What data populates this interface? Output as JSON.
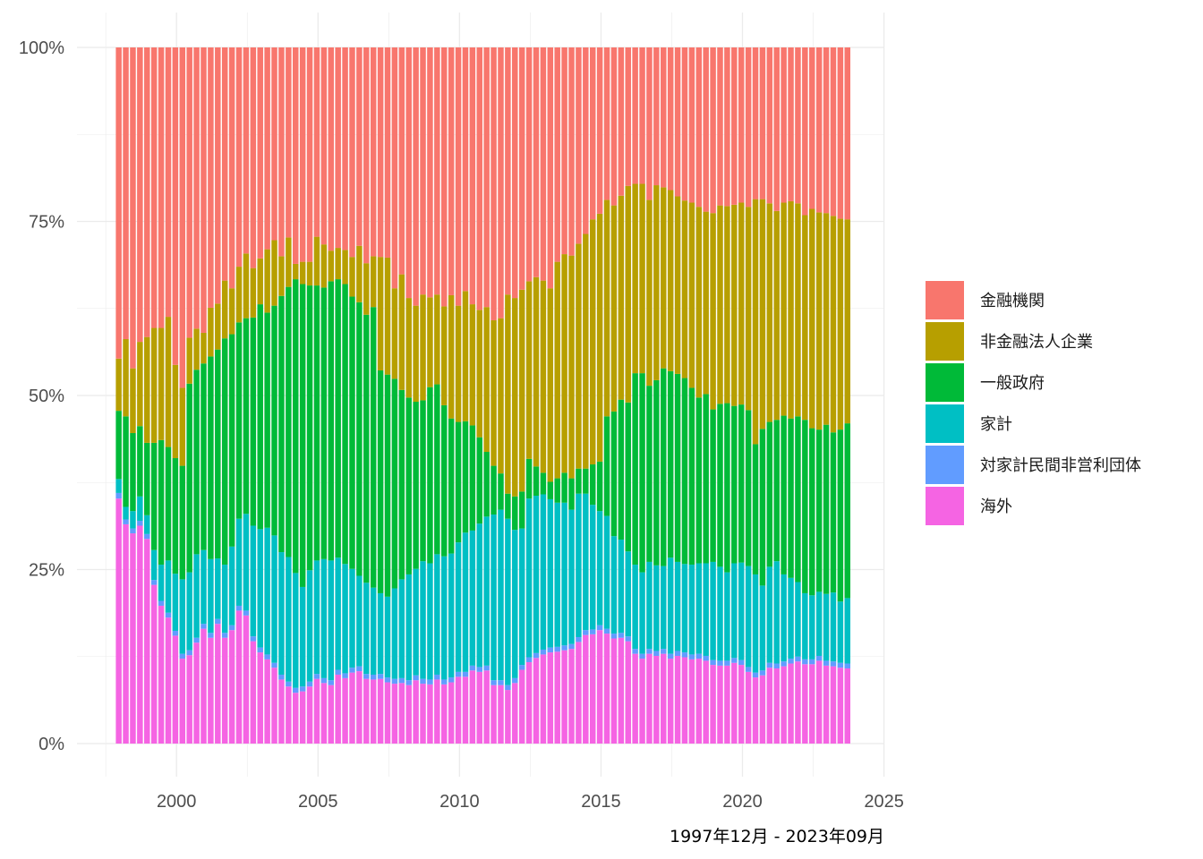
{
  "chart_data": {
    "type": "bar",
    "stacked": true,
    "percent": true,
    "grid": true,
    "legend_position": "right",
    "caption": "1997年12月 - 2023年09月",
    "x_ticks": [
      "2000",
      "2005",
      "2010",
      "2015",
      "2020",
      "2025"
    ],
    "xlim": [
      1997.5,
      2025
    ],
    "y_ticks": [
      "0%",
      "25%",
      "50%",
      "75%",
      "100%"
    ],
    "ylim": [
      0,
      1
    ],
    "period": {
      "start": "1997-12",
      "end": "2023-09",
      "frequency": "quarterly"
    },
    "layers_bottom_to_top": [
      "海外",
      "対家計民間非営利団体",
      "家計",
      "一般政府",
      "非金融法人企業",
      "金融機関"
    ],
    "legend": [
      {
        "name": "金融機関",
        "color": "#F8766D"
      },
      {
        "name": "非金融法人企業",
        "color": "#B79F00"
      },
      {
        "name": "一般政府",
        "color": "#00BA38"
      },
      {
        "name": "家計",
        "color": "#00BFC4"
      },
      {
        "name": "対家計民間非営利団体",
        "color": "#619CFF"
      },
      {
        "name": "海外",
        "color": "#F564E3"
      }
    ],
    "series_cumulative_top": {
      "海外": [
        0.352,
        0.315,
        0.302,
        0.313,
        0.294,
        0.228,
        0.198,
        0.181,
        0.155,
        0.122,
        0.127,
        0.145,
        0.165,
        0.152,
        0.172,
        0.152,
        0.163,
        0.191,
        0.184,
        0.147,
        0.131,
        0.121,
        0.109,
        0.092,
        0.082,
        0.073,
        0.075,
        0.082,
        0.093,
        0.087,
        0.084,
        0.099,
        0.094,
        0.102,
        0.104,
        0.093,
        0.092,
        0.093,
        0.088,
        0.086,
        0.087,
        0.084,
        0.091,
        0.086,
        0.085,
        0.092,
        0.085,
        0.088,
        0.096,
        0.096,
        0.105,
        0.103,
        0.105,
        0.084,
        0.084,
        0.077,
        0.087,
        0.106,
        0.117,
        0.123,
        0.128,
        0.131,
        0.132,
        0.134,
        0.136,
        0.146,
        0.156,
        0.157,
        0.163,
        0.158,
        0.151,
        0.152,
        0.147,
        0.129,
        0.122,
        0.129,
        0.126,
        0.129,
        0.122,
        0.126,
        0.124,
        0.121,
        0.122,
        0.119,
        0.113,
        0.112,
        0.112,
        0.116,
        0.113,
        0.103,
        0.095,
        0.098,
        0.109,
        0.108,
        0.111,
        0.115,
        0.118,
        0.114,
        0.114,
        0.119,
        0.112,
        0.111,
        0.109,
        0.108
      ],
      "対家計民間非営利団体": [
        0.36,
        0.322,
        0.309,
        0.32,
        0.301,
        0.235,
        0.205,
        0.188,
        0.162,
        0.129,
        0.134,
        0.152,
        0.172,
        0.159,
        0.179,
        0.159,
        0.17,
        0.198,
        0.191,
        0.154,
        0.138,
        0.128,
        0.116,
        0.099,
        0.089,
        0.08,
        0.082,
        0.089,
        0.1,
        0.094,
        0.091,
        0.106,
        0.101,
        0.109,
        0.111,
        0.1,
        0.099,
        0.1,
        0.095,
        0.093,
        0.094,
        0.091,
        0.098,
        0.093,
        0.092,
        0.099,
        0.092,
        0.095,
        0.103,
        0.103,
        0.112,
        0.11,
        0.112,
        0.091,
        0.091,
        0.084,
        0.094,
        0.113,
        0.124,
        0.13,
        0.135,
        0.138,
        0.139,
        0.141,
        0.143,
        0.153,
        0.163,
        0.164,
        0.17,
        0.165,
        0.158,
        0.159,
        0.154,
        0.136,
        0.129,
        0.136,
        0.133,
        0.136,
        0.129,
        0.133,
        0.131,
        0.128,
        0.129,
        0.126,
        0.12,
        0.119,
        0.119,
        0.123,
        0.12,
        0.11,
        0.102,
        0.105,
        0.116,
        0.115,
        0.118,
        0.122,
        0.125,
        0.121,
        0.121,
        0.126,
        0.119,
        0.118,
        0.116,
        0.115
      ],
      "家計": [
        0.38,
        0.34,
        0.334,
        0.355,
        0.328,
        0.278,
        0.257,
        0.263,
        0.244,
        0.236,
        0.246,
        0.272,
        0.278,
        0.265,
        0.266,
        0.257,
        0.283,
        0.323,
        0.33,
        0.313,
        0.308,
        0.31,
        0.299,
        0.275,
        0.268,
        0.245,
        0.225,
        0.249,
        0.263,
        0.265,
        0.263,
        0.267,
        0.258,
        0.251,
        0.241,
        0.231,
        0.224,
        0.216,
        0.211,
        0.223,
        0.236,
        0.243,
        0.251,
        0.262,
        0.259,
        0.272,
        0.269,
        0.273,
        0.289,
        0.303,
        0.306,
        0.316,
        0.326,
        0.329,
        0.336,
        0.323,
        0.307,
        0.309,
        0.352,
        0.356,
        0.358,
        0.351,
        0.346,
        0.346,
        0.336,
        0.359,
        0.359,
        0.343,
        0.334,
        0.327,
        0.298,
        0.293,
        0.276,
        0.257,
        0.246,
        0.261,
        0.256,
        0.255,
        0.267,
        0.261,
        0.258,
        0.257,
        0.259,
        0.259,
        0.261,
        0.254,
        0.246,
        0.259,
        0.26,
        0.255,
        0.243,
        0.227,
        0.254,
        0.262,
        0.243,
        0.238,
        0.232,
        0.216,
        0.213,
        0.218,
        0.215,
        0.217,
        0.204,
        0.209
      ],
      "一般政府": [
        0.478,
        0.47,
        0.446,
        0.456,
        0.432,
        0.432,
        0.436,
        0.426,
        0.41,
        0.399,
        0.517,
        0.537,
        0.546,
        0.556,
        0.566,
        0.582,
        0.588,
        0.605,
        0.611,
        0.612,
        0.631,
        0.619,
        0.629,
        0.643,
        0.656,
        0.667,
        0.66,
        0.658,
        0.658,
        0.655,
        0.664,
        0.667,
        0.66,
        0.642,
        0.634,
        0.616,
        0.627,
        0.536,
        0.53,
        0.524,
        0.508,
        0.497,
        0.491,
        0.493,
        0.512,
        0.516,
        0.486,
        0.467,
        0.462,
        0.463,
        0.457,
        0.44,
        0.419,
        0.399,
        0.388,
        0.359,
        0.355,
        0.362,
        0.409,
        0.398,
        0.389,
        0.376,
        0.381,
        0.389,
        0.381,
        0.395,
        0.395,
        0.401,
        0.405,
        0.47,
        0.477,
        0.494,
        0.49,
        0.532,
        0.532,
        0.514,
        0.522,
        0.539,
        0.535,
        0.531,
        0.525,
        0.511,
        0.497,
        0.502,
        0.48,
        0.488,
        0.489,
        0.485,
        0.487,
        0.479,
        0.43,
        0.452,
        0.462,
        0.465,
        0.471,
        0.467,
        0.47,
        0.465,
        0.453,
        0.451,
        0.458,
        0.447,
        0.451,
        0.46
      ],
      "非金融法人企業": [
        0.553,
        0.581,
        0.539,
        0.577,
        0.584,
        0.597,
        0.597,
        0.613,
        0.544,
        0.511,
        0.583,
        0.596,
        0.59,
        0.626,
        0.632,
        0.665,
        0.654,
        0.685,
        0.704,
        0.683,
        0.697,
        0.71,
        0.723,
        0.7,
        0.727,
        0.689,
        0.692,
        0.692,
        0.728,
        0.717,
        0.708,
        0.712,
        0.709,
        0.699,
        0.715,
        0.69,
        0.7,
        0.699,
        0.698,
        0.654,
        0.674,
        0.64,
        0.629,
        0.645,
        0.641,
        0.645,
        0.628,
        0.644,
        0.629,
        0.65,
        0.631,
        0.623,
        0.627,
        0.608,
        0.611,
        0.645,
        0.64,
        0.652,
        0.664,
        0.67,
        0.665,
        0.654,
        0.692,
        0.703,
        0.701,
        0.718,
        0.732,
        0.753,
        0.761,
        0.781,
        0.773,
        0.787,
        0.801,
        0.804,
        0.804,
        0.781,
        0.802,
        0.799,
        0.795,
        0.786,
        0.78,
        0.777,
        0.771,
        0.764,
        0.762,
        0.773,
        0.772,
        0.774,
        0.777,
        0.771,
        0.782,
        0.782,
        0.776,
        0.765,
        0.777,
        0.779,
        0.776,
        0.759,
        0.768,
        0.763,
        0.762,
        0.758,
        0.754,
        0.753
      ],
      "金融機関": [
        1,
        1,
        1,
        1,
        1,
        1,
        1,
        1,
        1,
        1,
        1,
        1,
        1,
        1,
        1,
        1,
        1,
        1,
        1,
        1,
        1,
        1,
        1,
        1,
        1,
        1,
        1,
        1,
        1,
        1,
        1,
        1,
        1,
        1,
        1,
        1,
        1,
        1,
        1,
        1,
        1,
        1,
        1,
        1,
        1,
        1,
        1,
        1,
        1,
        1,
        1,
        1,
        1,
        1,
        1,
        1,
        1,
        1,
        1,
        1,
        1,
        1,
        1,
        1,
        1,
        1,
        1,
        1,
        1,
        1,
        1,
        1,
        1,
        1,
        1,
        1,
        1,
        1,
        1,
        1,
        1,
        1,
        1,
        1,
        1,
        1,
        1,
        1,
        1,
        1,
        1,
        1,
        1,
        1,
        1,
        1,
        1,
        1,
        1,
        1,
        1,
        1,
        1,
        1
      ]
    }
  }
}
